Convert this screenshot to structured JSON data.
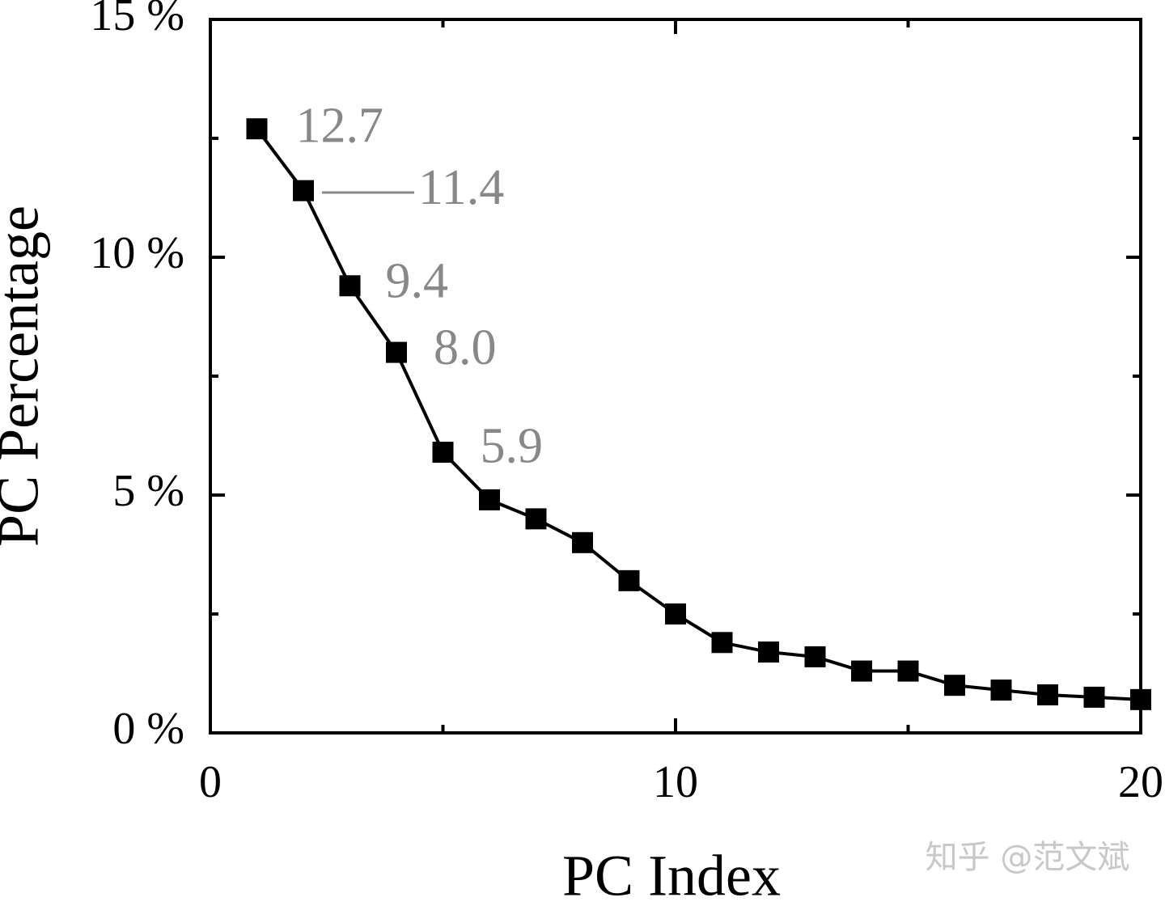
{
  "chart_data": {
    "type": "line",
    "x_label": "PC Index",
    "y_label": "PC Percentage",
    "x": [
      1,
      2,
      3,
      4,
      5,
      6,
      7,
      8,
      9,
      10,
      11,
      12,
      13,
      14,
      15,
      16,
      17,
      18,
      19,
      20
    ],
    "values": [
      12.7,
      11.4,
      9.4,
      8.0,
      5.9,
      4.9,
      4.5,
      4.0,
      3.2,
      2.5,
      1.9,
      1.7,
      1.6,
      1.3,
      1.3,
      1.0,
      0.9,
      0.8,
      0.75,
      0.7
    ],
    "value_labels": [
      "12.7",
      "11.4",
      "9.4",
      "8.0",
      "5.9",
      null,
      null,
      null,
      null,
      null,
      null,
      null,
      null,
      null,
      null,
      null,
      null,
      null,
      null,
      null
    ],
    "color": "#000000",
    "label_color": "#888888",
    "xlim": [
      0,
      20
    ],
    "xticks": [
      0,
      10,
      20
    ],
    "xminor_ticks": [
      5,
      15
    ],
    "ylim": [
      0,
      15
    ],
    "yticks": [
      {
        "value": 0,
        "label": "0 %"
      },
      {
        "value": 5,
        "label": "5 %"
      },
      {
        "value": 10,
        "label": "10 %"
      },
      {
        "value": 15,
        "label": "15 %"
      }
    ],
    "yminor_ticks": [
      2.5,
      7.5,
      12.5
    ],
    "watermark": "知乎 @范文斌"
  }
}
